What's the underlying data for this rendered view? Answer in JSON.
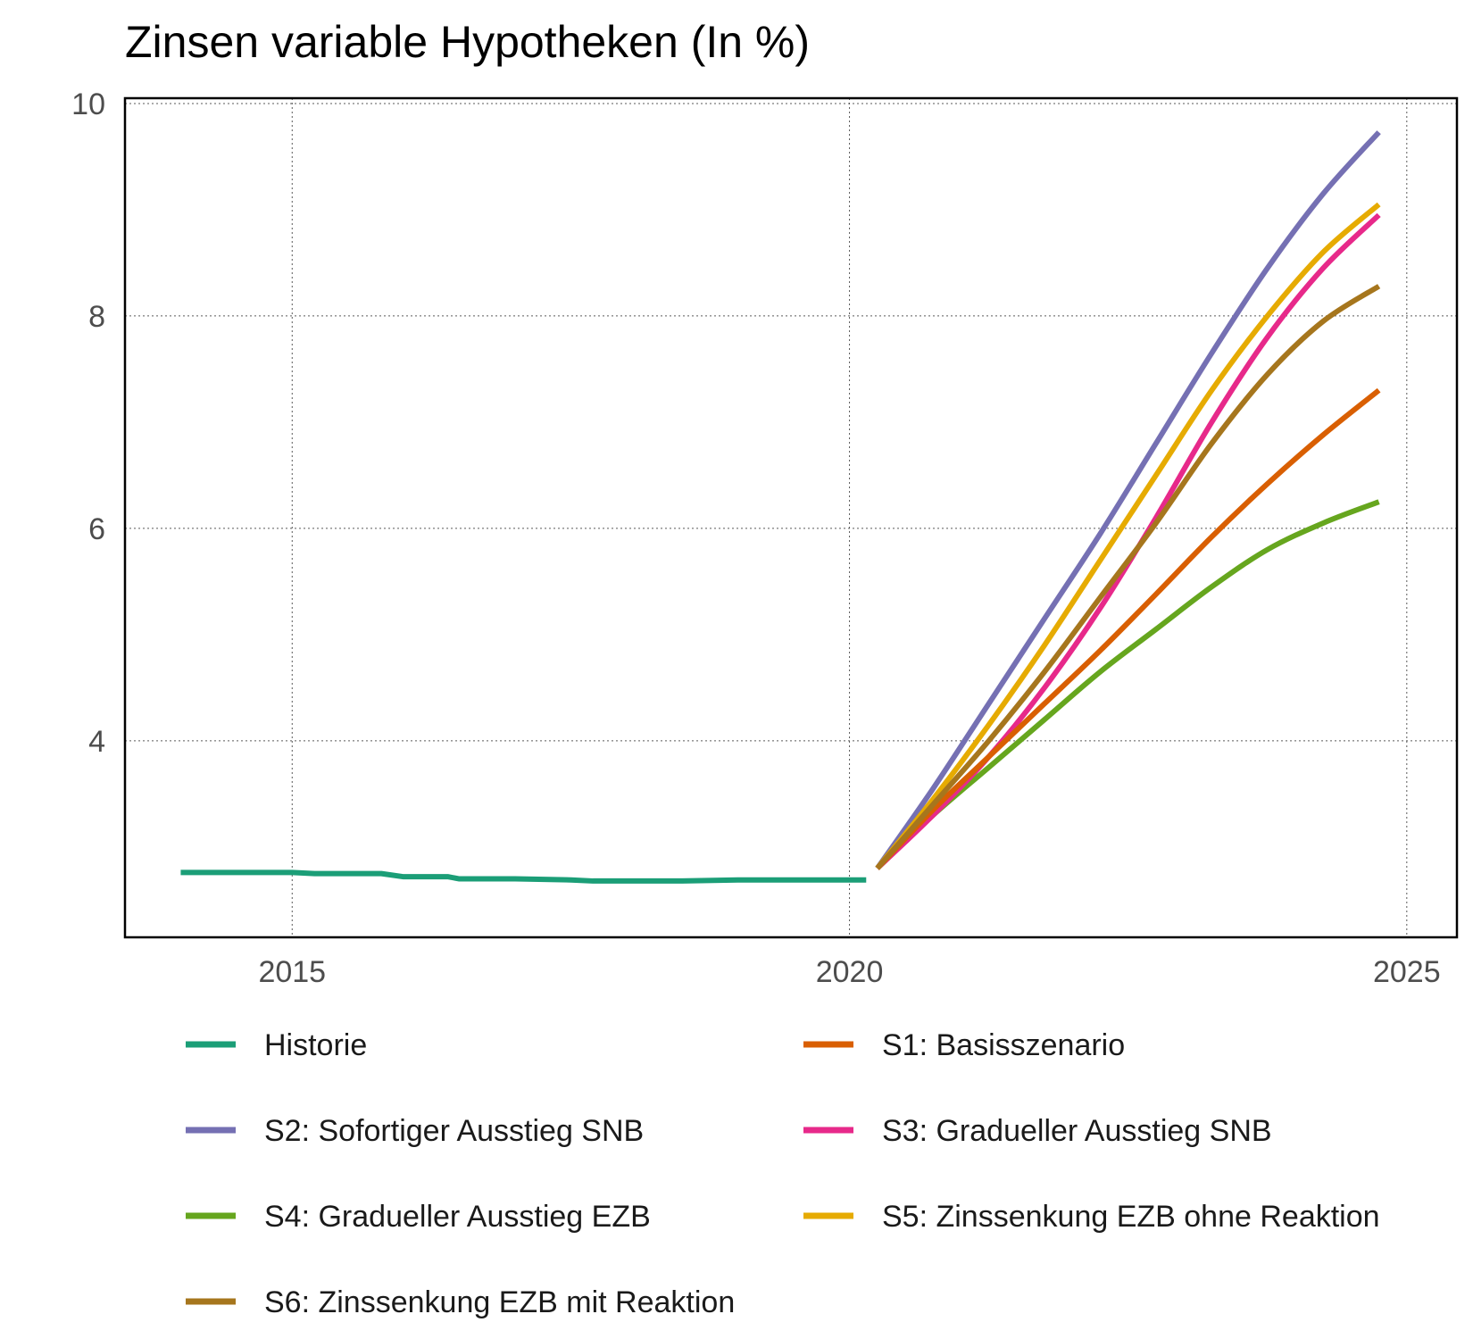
{
  "chart_data": {
    "type": "line",
    "title": "Zinsen variable Hypotheken (In %)",
    "xlabel": "",
    "ylabel": "",
    "xlim": [
      2013.5,
      2025.45
    ],
    "ylim": [
      2.15,
      10.05
    ],
    "x_ticks": [
      2015,
      2020,
      2025
    ],
    "x_tick_labels": [
      "2015",
      "2020",
      "2025"
    ],
    "y_ticks": [
      4,
      6,
      8,
      10
    ],
    "y_tick_labels": [
      "4",
      "6",
      "8",
      "10"
    ],
    "grid": true,
    "legend_position": "bottom",
    "series": [
      {
        "name": "Historie",
        "color": "#1b9e77",
        "x": [
          2014.0,
          2014.5,
          2015.0,
          2015.2,
          2015.8,
          2016.0,
          2016.4,
          2016.5,
          2017.0,
          2017.5,
          2017.7,
          2018.0,
          2018.5,
          2019.0,
          2019.5,
          2020.15
        ],
        "y": [
          2.76,
          2.76,
          2.76,
          2.75,
          2.75,
          2.72,
          2.72,
          2.7,
          2.7,
          2.69,
          2.68,
          2.68,
          2.68,
          2.69,
          2.69,
          2.69
        ]
      },
      {
        "name": "S1: Basisszenario",
        "color": "#d95f02",
        "x": [
          2020.25,
          2020.75,
          2021.25,
          2021.75,
          2022.25,
          2022.75,
          2023.25,
          2023.75,
          2024.25,
          2024.75
        ],
        "y": [
          2.8,
          3.35,
          3.85,
          4.35,
          4.85,
          5.38,
          5.92,
          6.42,
          6.88,
          7.3
        ]
      },
      {
        "name": "S2: Sofortiger Ausstieg SNB",
        "color": "#7570b3",
        "x": [
          2020.25,
          2020.75,
          2021.25,
          2021.75,
          2022.25,
          2022.75,
          2023.25,
          2023.75,
          2024.25,
          2024.75
        ],
        "y": [
          2.8,
          3.55,
          4.35,
          5.15,
          5.95,
          6.8,
          7.65,
          8.45,
          9.15,
          9.73
        ]
      },
      {
        "name": "S3: Gradueller Ausstieg SNB",
        "color": "#e7298a",
        "x": [
          2020.25,
          2020.75,
          2021.25,
          2021.75,
          2022.25,
          2022.75,
          2023.25,
          2023.75,
          2024.25,
          2024.75
        ],
        "y": [
          2.8,
          3.3,
          3.85,
          4.5,
          5.25,
          6.1,
          7.0,
          7.8,
          8.45,
          8.95
        ]
      },
      {
        "name": "S4: Gradueller Ausstieg EZB",
        "color": "#66a61e",
        "x": [
          2020.25,
          2020.75,
          2021.25,
          2021.75,
          2022.25,
          2022.75,
          2023.25,
          2023.75,
          2024.25,
          2024.75
        ],
        "y": [
          2.8,
          3.3,
          3.75,
          4.2,
          4.65,
          5.05,
          5.45,
          5.8,
          6.05,
          6.25
        ]
      },
      {
        "name": "S5: Zinssenkung EZB ohne Reaktion",
        "color": "#e6ab02",
        "x": [
          2020.25,
          2020.75,
          2021.25,
          2021.75,
          2022.25,
          2022.75,
          2023.25,
          2023.75,
          2024.25,
          2024.75
        ],
        "y": [
          2.8,
          3.45,
          4.15,
          4.9,
          5.7,
          6.5,
          7.3,
          8.0,
          8.6,
          9.05
        ]
      },
      {
        "name": "S6: Zinssenkung EZB mit Reaktion",
        "color": "#a6761d",
        "x": [
          2020.25,
          2020.75,
          2021.25,
          2021.75,
          2022.25,
          2022.75,
          2023.25,
          2023.75,
          2024.25,
          2024.75
        ],
        "y": [
          2.8,
          3.4,
          4.0,
          4.65,
          5.35,
          6.05,
          6.8,
          7.45,
          7.95,
          8.28
        ]
      }
    ]
  }
}
